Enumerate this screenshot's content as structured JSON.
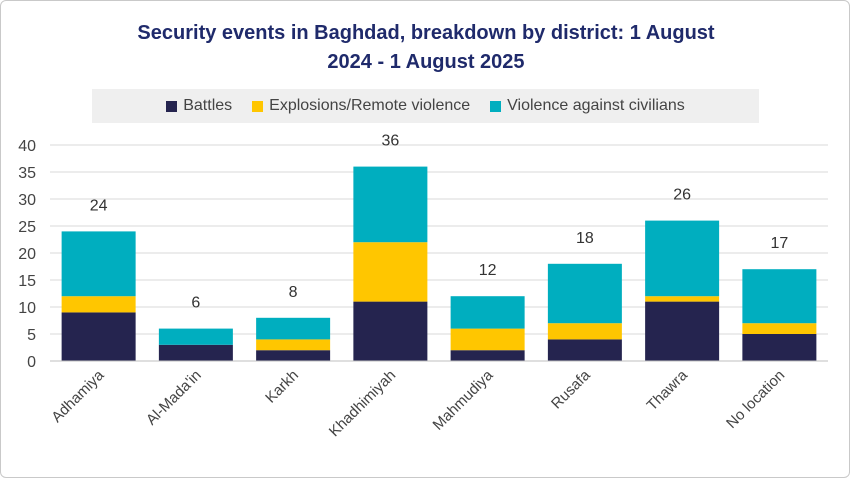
{
  "chart_data": {
    "type": "bar",
    "stacked": true,
    "title_line1": "Security events in Baghdad, breakdown by district: 1 August",
    "title_line2": "2024 - 1 August 2025",
    "categories": [
      "Adhamiya",
      "Al-Mada'in",
      "Karkh",
      "Khadhimiyah",
      "Mahmudiya",
      "Rusafa",
      "Thawra",
      "No location"
    ],
    "series": [
      {
        "name": "Battles",
        "color": "#25244f",
        "values": [
          9,
          3,
          2,
          11,
          2,
          4,
          11,
          5
        ]
      },
      {
        "name": "Explosions/Remote violence",
        "color": "#ffc600",
        "values": [
          3,
          0,
          2,
          11,
          4,
          3,
          1,
          2
        ]
      },
      {
        "name": "Violence against civilians",
        "color": "#00aebf",
        "values": [
          12,
          3,
          4,
          14,
          6,
          11,
          14,
          10
        ]
      }
    ],
    "totals": [
      "24",
      "6",
      "8",
      "36",
      "12",
      "18",
      "26",
      "17"
    ],
    "yticks": [
      "0",
      "5",
      "10",
      "15",
      "20",
      "25",
      "30",
      "35",
      "40"
    ],
    "ylim": [
      0,
      40
    ],
    "legend_position": "top",
    "grid": true
  }
}
